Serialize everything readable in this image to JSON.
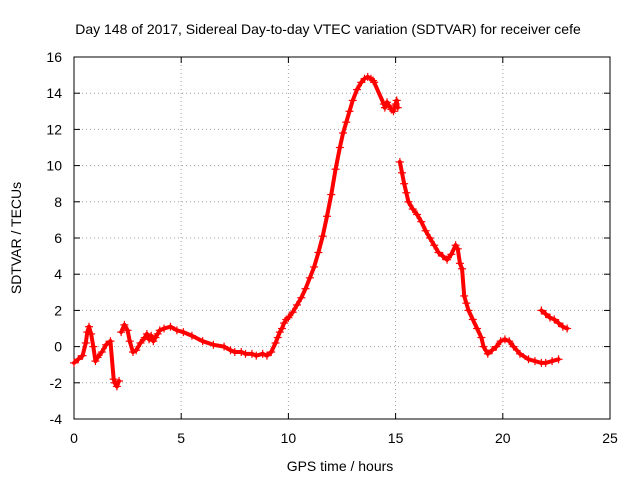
{
  "chart_data": {
    "type": "scatter",
    "title": "Day 148 of 2017, Sidereal Day-to-day VTEC variation (SDTVAR) for receiver cefe",
    "xlabel": "GPS time / hours",
    "ylabel": "SDTVAR / TECUs",
    "xlim": [
      0,
      25
    ],
    "ylim": [
      -4,
      16
    ],
    "x_ticks": [
      0,
      5,
      10,
      15,
      20,
      25
    ],
    "y_ticks": [
      -4,
      -2,
      0,
      2,
      4,
      6,
      8,
      10,
      12,
      14,
      16
    ],
    "x_tick_labels": [
      "0",
      "5",
      "10",
      "15",
      "20",
      "25"
    ],
    "y_tick_labels": [
      "-4",
      "-2",
      "0",
      "2",
      "4",
      "6",
      "8",
      "10",
      "12",
      "14",
      "16"
    ],
    "grid": true,
    "marker": "plus",
    "color": "#ff0000",
    "series": [
      {
        "name": "SDTVAR",
        "x": [
          0.0,
          0.2,
          0.4,
          0.55,
          0.62,
          0.7,
          0.8,
          0.9,
          1.0,
          1.1,
          1.3,
          1.5,
          1.7,
          1.85,
          1.9,
          2.0,
          2.1,
          2.2,
          2.35,
          2.5,
          2.6,
          2.75,
          2.9,
          3.1,
          3.3,
          3.4,
          3.5,
          3.6,
          3.7,
          3.8,
          3.9,
          4.0,
          4.2,
          4.5,
          4.8,
          5.1,
          5.5,
          6.0,
          6.5,
          7.0,
          7.3,
          7.5,
          7.8,
          8.0,
          8.3,
          8.5,
          8.8,
          9.0,
          9.2,
          9.4,
          9.5,
          9.6,
          9.7,
          9.8,
          9.9,
          10.0,
          10.2,
          10.4,
          10.6,
          10.8,
          11.0,
          11.2,
          11.4,
          11.6,
          11.8,
          12.0,
          12.2,
          12.4,
          12.55,
          12.7,
          12.85,
          13.0,
          13.2,
          13.4,
          13.55,
          13.7,
          13.85,
          13.95,
          14.0,
          14.45,
          14.5,
          14.6,
          14.7,
          14.8,
          14.9,
          15.0,
          15.05,
          15.1,
          15.2,
          15.3,
          15.4,
          15.5,
          15.6,
          15.8,
          16.0,
          16.2,
          16.4,
          16.6,
          16.8,
          17.0,
          17.2,
          17.4,
          17.6,
          17.8,
          17.9,
          18.0,
          18.1,
          18.2,
          18.3,
          18.4,
          18.6,
          18.8,
          19.0,
          19.1,
          19.3,
          19.5,
          19.7,
          19.9,
          20.1,
          20.3,
          20.5,
          20.8,
          21.2,
          21.5,
          21.8,
          22.0,
          22.3,
          22.6,
          21.8,
          22.0,
          22.2,
          22.4,
          22.6,
          22.8,
          23.0
        ],
        "y": [
          -0.9,
          -0.7,
          -0.5,
          0.2,
          0.8,
          1.1,
          0.7,
          0.0,
          -0.8,
          -0.6,
          -0.3,
          0.1,
          0.3,
          -1.8,
          -2.0,
          -2.2,
          -1.9,
          0.8,
          1.2,
          0.9,
          0.3,
          -0.3,
          -0.2,
          0.2,
          0.5,
          0.7,
          0.4,
          0.6,
          0.3,
          0.5,
          0.7,
          0.9,
          1.0,
          1.1,
          0.9,
          0.8,
          0.6,
          0.3,
          0.1,
          0.0,
          -0.2,
          -0.3,
          -0.3,
          -0.4,
          -0.4,
          -0.5,
          -0.4,
          -0.5,
          -0.3,
          0.2,
          0.5,
          0.8,
          1.0,
          1.3,
          1.5,
          1.6,
          1.9,
          2.3,
          2.7,
          3.2,
          3.8,
          4.4,
          5.2,
          6.1,
          7.2,
          8.4,
          9.8,
          11.0,
          11.8,
          12.4,
          13.0,
          13.6,
          14.2,
          14.6,
          14.8,
          14.9,
          14.8,
          14.7,
          14.6,
          13.4,
          13.2,
          13.5,
          13.3,
          13.1,
          13.0,
          13.4,
          13.6,
          13.2,
          10.2,
          9.6,
          9.0,
          8.5,
          8.0,
          7.6,
          7.3,
          6.9,
          6.4,
          6.0,
          5.6,
          5.2,
          5.0,
          4.8,
          5.1,
          5.6,
          5.4,
          4.6,
          4.3,
          2.8,
          2.4,
          2.0,
          1.5,
          1.0,
          0.5,
          0.0,
          -0.4,
          -0.2,
          0.0,
          0.3,
          0.4,
          0.3,
          0.0,
          -0.4,
          -0.7,
          -0.8,
          -0.9,
          -0.9,
          -0.8,
          -0.7,
          2.0,
          1.8,
          1.6,
          1.5,
          1.3,
          1.1,
          1.0
        ]
      }
    ]
  }
}
